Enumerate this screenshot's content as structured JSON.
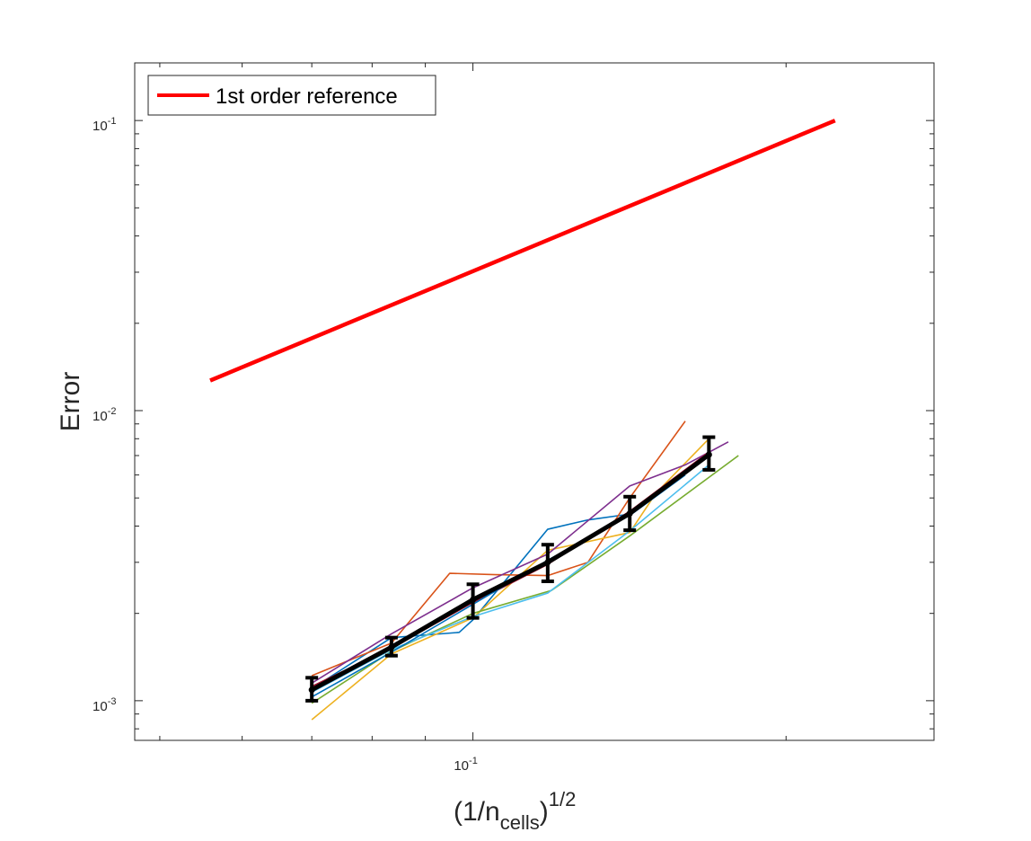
{
  "chart_data": {
    "type": "line",
    "xscale": "log",
    "yscale": "log",
    "xlim": [
      0.0473,
      0.2775
    ],
    "ylim": [
      0.00073,
      0.158
    ],
    "grid": false,
    "legend_position": "top-left",
    "xlabel": {
      "base": "(1/n",
      "subscript": "cells",
      "suffix": ")",
      "superscript": "1/2"
    },
    "ylabel": "Error",
    "x_tick_labels": [
      {
        "value": 0.1,
        "base": "10",
        "exponent": "-1"
      }
    ],
    "y_tick_labels": [
      {
        "value": 0.001,
        "base": "10",
        "exponent": "-3"
      },
      {
        "value": 0.01,
        "base": "10",
        "exponent": "-2"
      },
      {
        "value": 0.1,
        "base": "10",
        "exponent": "-1"
      }
    ],
    "reference": {
      "name": "1st order reference",
      "color": "#ff0000",
      "x": [
        0.0559,
        0.2229
      ],
      "y": [
        0.0127,
        0.1
      ]
    },
    "x_points": [
      0.07,
      0.0835,
      0.1,
      0.118,
      0.1415,
      0.1686
    ],
    "mean": {
      "color": "#000000",
      "y": [
        0.00109,
        0.00153,
        0.00223,
        0.003,
        0.00442,
        0.00705
      ],
      "err_low": [
        0.001,
        0.00143,
        0.00193,
        0.00258,
        0.00387,
        0.00625
      ],
      "err_high": [
        0.0012,
        0.00165,
        0.00252,
        0.00345,
        0.00505,
        0.0081
      ]
    },
    "samples": [
      {
        "color": "#0072bd",
        "x": [
          0.07,
          0.0835,
          0.097,
          0.1,
          0.118,
          0.129,
          0.1415,
          0.1686
        ],
        "y": [
          0.0011,
          0.00165,
          0.00172,
          0.0019,
          0.0039,
          0.0042,
          0.0044,
          0.007
        ]
      },
      {
        "color": "#d95319",
        "x": [
          0.07,
          0.0835,
          0.095,
          0.105,
          0.118,
          0.129,
          0.1415,
          0.16
        ],
        "y": [
          0.00122,
          0.00158,
          0.00275,
          0.00272,
          0.0027,
          0.003,
          0.005,
          0.0092
        ]
      },
      {
        "color": "#edb120",
        "x": [
          0.07,
          0.0835,
          0.1,
          0.118,
          0.1415,
          0.15,
          0.1686
        ],
        "y": [
          0.00086,
          0.00145,
          0.00193,
          0.0033,
          0.0038,
          0.0052,
          0.008
        ]
      },
      {
        "color": "#7e2f8e",
        "x": [
          0.07,
          0.0835,
          0.1,
          0.118,
          0.1415,
          0.16,
          0.176
        ],
        "y": [
          0.00115,
          0.0017,
          0.00245,
          0.0032,
          0.0055,
          0.0065,
          0.0078
        ]
      },
      {
        "color": "#77ac30",
        "x": [
          0.07,
          0.0835,
          0.1,
          0.119,
          0.1415,
          0.18
        ],
        "y": [
          0.00098,
          0.00148,
          0.002,
          0.0024,
          0.0037,
          0.007
        ]
      },
      {
        "color": "#4dbeee",
        "x": [
          0.07,
          0.0835,
          0.1,
          0.118,
          0.1415,
          0.1686
        ],
        "y": [
          0.00107,
          0.0015,
          0.00195,
          0.00235,
          0.00385,
          0.0065
        ]
      },
      {
        "color": "#a2142f",
        "x": [
          0.07,
          0.0835,
          0.1,
          0.118,
          0.1415,
          0.1686
        ],
        "y": [
          0.00112,
          0.00152,
          0.00218,
          0.00295,
          0.0045,
          0.0072
        ]
      },
      {
        "color": "#0072bd",
        "x": [
          0.07,
          0.0835,
          0.1,
          0.118,
          0.1415,
          0.16
        ],
        "y": [
          0.00103,
          0.00147,
          0.00215,
          0.00305,
          0.00435,
          0.006
        ]
      }
    ]
  }
}
